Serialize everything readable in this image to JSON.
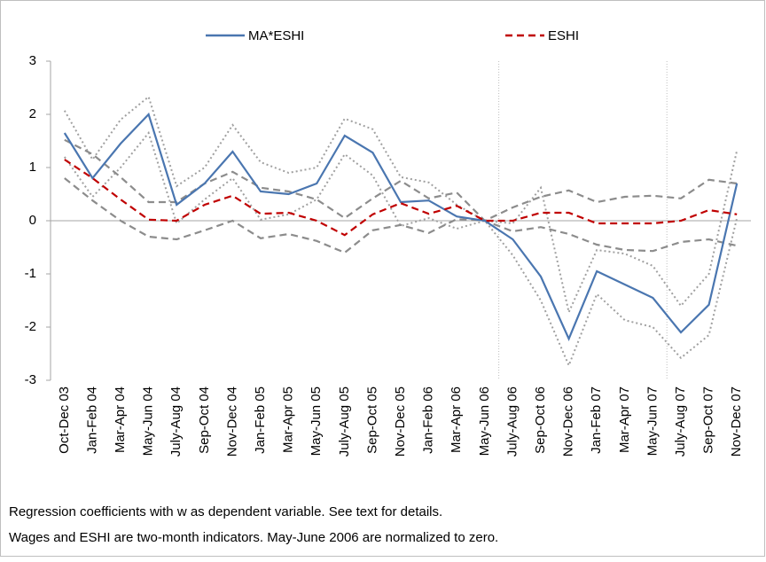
{
  "chart_data": {
    "type": "line",
    "categories": [
      "Oct-Dec 03",
      "Jan-Feb 04",
      "Mar-Apr 04",
      "May-Jun 04",
      "July-Aug 04",
      "Sep-Oct 04",
      "Nov-Dec 04",
      "Jan-Feb 05",
      "Mar-Apr 05",
      "May-Jun 05",
      "July-Aug 05",
      "Sep-Oct 05",
      "Nov-Dec 05",
      "Jan-Feb 06",
      "Mar-Apr 06",
      "May-Jun 06",
      "July-Aug 06",
      "Sep-Oct 06",
      "Nov-Dec 06",
      "Jan-Feb 07",
      "Mar-Apr 07",
      "May-Jun 07",
      "July-Aug 07",
      "Sep-Oct 07",
      "Nov-Dec 07"
    ],
    "series": [
      {
        "color": "#a0a0a0",
        "dash": "dotted",
        "values": [
          2.07,
          1.15,
          1.9,
          2.33,
          0.65,
          1.0,
          1.8,
          1.1,
          0.9,
          1.0,
          1.92,
          1.72,
          0.82,
          0.72,
          0.3,
          0.0,
          -0.05,
          0.62,
          -1.72,
          -0.55,
          -0.62,
          -0.85,
          -1.6,
          -1.0,
          1.32
        ]
      },
      {
        "color": "#a0a0a0",
        "dash": "dotted",
        "values": [
          1.2,
          0.45,
          1.0,
          1.65,
          -0.05,
          0.4,
          0.8,
          0.02,
          0.12,
          0.4,
          1.25,
          0.85,
          -0.1,
          0.05,
          -0.15,
          0.0,
          -0.65,
          -1.5,
          -2.72,
          -1.38,
          -1.87,
          -2.0,
          -2.58,
          -2.15,
          0.05
        ]
      },
      {
        "color": "#8c8c8c",
        "dash": "dashed",
        "values": [
          1.52,
          1.25,
          0.82,
          0.35,
          0.35,
          0.7,
          0.92,
          0.62,
          0.55,
          0.4,
          0.05,
          0.42,
          0.75,
          0.42,
          0.53,
          0.0,
          0.25,
          0.45,
          0.57,
          0.35,
          0.45,
          0.47,
          0.42,
          0.77,
          0.7
        ]
      },
      {
        "color": "#8c8c8c",
        "dash": "dashed",
        "values": [
          0.8,
          0.38,
          0.0,
          -0.3,
          -0.35,
          -0.18,
          0.0,
          -0.33,
          -0.25,
          -0.38,
          -0.6,
          -0.18,
          -0.08,
          -0.23,
          0.03,
          0.0,
          -0.2,
          -0.12,
          -0.25,
          -0.45,
          -0.55,
          -0.57,
          -0.4,
          -0.35,
          -0.47
        ]
      },
      {
        "name": "MA*ESHI",
        "color": "#4a76b0",
        "dash": "solid",
        "values": [
          1.65,
          0.8,
          1.45,
          2.0,
          0.3,
          0.7,
          1.3,
          0.55,
          0.5,
          0.7,
          1.6,
          1.28,
          0.35,
          0.38,
          0.08,
          0.0,
          -0.35,
          -1.05,
          -2.22,
          -0.95,
          -1.2,
          -1.45,
          -2.1,
          -1.58,
          0.7
        ]
      },
      {
        "name": "ESHI",
        "color": "#c00000",
        "dash": "dashed",
        "values": [
          1.15,
          0.8,
          0.4,
          0.02,
          0.0,
          0.3,
          0.47,
          0.13,
          0.15,
          0.0,
          -0.27,
          0.12,
          0.33,
          0.13,
          0.28,
          0.0,
          0.0,
          0.15,
          0.15,
          -0.05,
          -0.05,
          -0.05,
          0.0,
          0.2,
          0.12
        ]
      }
    ],
    "vertical_lines_after": [
      "May-Jun 06",
      "May-Jun 07"
    ],
    "ylim": [
      -3,
      3
    ],
    "yticks": [
      -3,
      -2,
      -1,
      0,
      1,
      2,
      3
    ],
    "legend": "top",
    "notes": [
      "Regression coefficients with w as dependent variable.  See text for details.",
      "Wages and ESHI are two-month indicators. May-June 2006 are normalized to zero."
    ]
  }
}
